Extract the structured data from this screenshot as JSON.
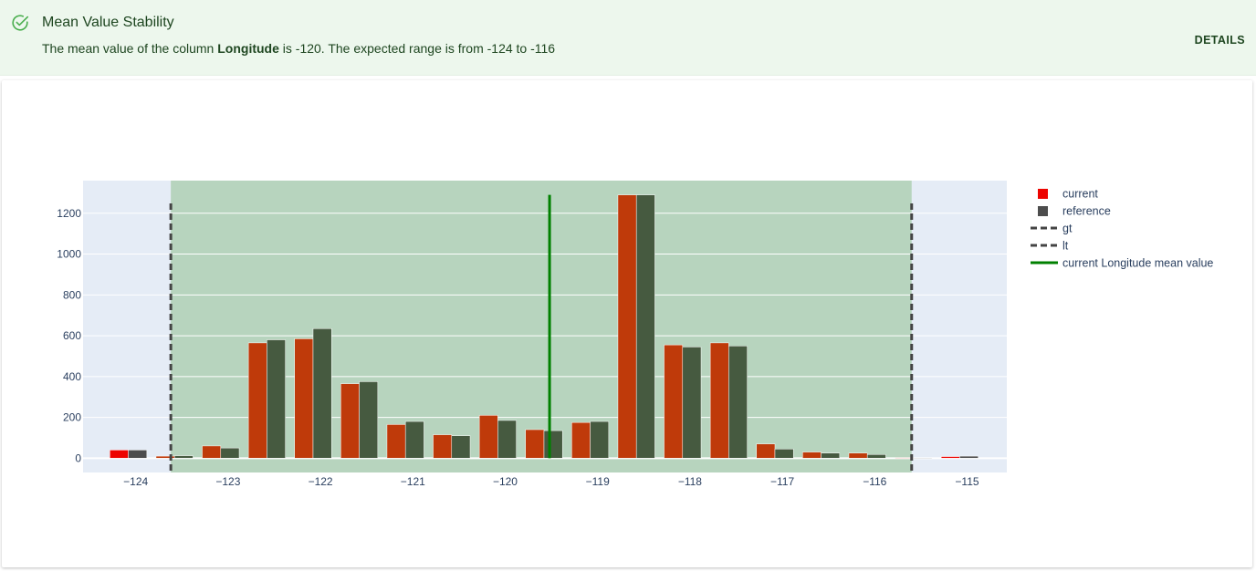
{
  "banner": {
    "title": "Mean Value Stability",
    "message_prefix": "The mean value of the column ",
    "column": "Longitude",
    "message_suffix": " is -120. The expected range is from -124 to -116",
    "details_label": "DETAILS",
    "icon": "check-circle-icon",
    "bg_color": "#edf7ed",
    "text_color": "#1e4620"
  },
  "chart_data": {
    "type": "bar",
    "x_tick_labels": [
      "−124",
      "−123",
      "−122",
      "−121",
      "−120",
      "−119",
      "−118",
      "−117",
      "−116",
      "−115"
    ],
    "y_tick_labels": [
      "0",
      "200",
      "400",
      "600",
      "800",
      "1000",
      "1200"
    ],
    "xlim": [
      -124.57,
      -114.57
    ],
    "ylim": [
      -70,
      1360
    ],
    "bin_centers": [
      -124.08,
      -123.58,
      -123.08,
      -122.58,
      -122.08,
      -121.58,
      -121.08,
      -120.58,
      -120.08,
      -119.58,
      -119.08,
      -118.58,
      -118.08,
      -117.58,
      -117.08,
      -116.58,
      -116.08,
      -115.58,
      -115.08
    ],
    "series": [
      {
        "name": "current",
        "color": "#ed0400",
        "values": [
          40,
          10,
          60,
          565,
          585,
          365,
          165,
          115,
          210,
          140,
          175,
          1290,
          555,
          565,
          70,
          30,
          25,
          2,
          8
        ]
      },
      {
        "name": "reference",
        "color": "#4d4d4d",
        "values": [
          40,
          12,
          50,
          580,
          635,
          375,
          180,
          110,
          185,
          135,
          180,
          1290,
          545,
          550,
          45,
          25,
          18,
          0,
          10
        ]
      }
    ],
    "lines": [
      {
        "name": "gt",
        "x": -123.62,
        "style": "dashed",
        "color": "#444444"
      },
      {
        "name": "lt",
        "x": -115.6,
        "style": "dashed",
        "color": "#444444"
      },
      {
        "name": "current Longitude mean value",
        "x": -119.52,
        "style": "solid",
        "color": "#008000",
        "y_top": 1290
      }
    ],
    "acceptable_range": [
      -123.62,
      -115.6
    ],
    "range_fill_color": "#b7d4be",
    "inside_range_colors": {
      "current": "#bf3a0a",
      "reference": "#465a40"
    },
    "plot_bg_color": "#e5ecf6",
    "grid": true,
    "legend_position": "right"
  }
}
